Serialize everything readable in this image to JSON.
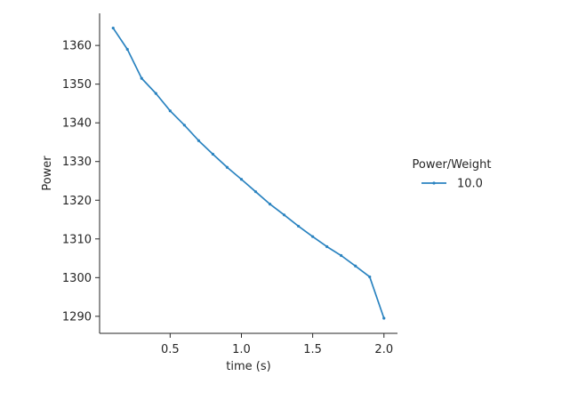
{
  "chart_data": {
    "type": "line",
    "xlabel": "time (s)",
    "ylabel": "Power",
    "xlim": [
      0.005,
      2.095
    ],
    "ylim": [
      1285.6,
      1368.3
    ],
    "xticks": [
      0.5,
      1.0,
      1.5,
      2.0
    ],
    "xtick_labels": [
      "0.5",
      "1.0",
      "1.5",
      "2.0"
    ],
    "yticks": [
      1290,
      1300,
      1310,
      1320,
      1330,
      1340,
      1350,
      1360
    ],
    "ytick_labels": [
      "1290",
      "1300",
      "1310",
      "1320",
      "1330",
      "1340",
      "1350",
      "1360"
    ],
    "grid": false,
    "legend": {
      "title": "Power/Weight",
      "placement": "right"
    },
    "series": [
      {
        "name": "10.0",
        "color": "#2a83c0",
        "x": [
          0.1,
          0.2,
          0.3,
          0.4,
          0.5,
          0.6,
          0.7,
          0.8,
          0.9,
          1.0,
          1.1,
          1.2,
          1.3,
          1.4,
          1.5,
          1.6,
          1.7,
          1.8,
          1.9,
          2.0
        ],
        "values": [
          1364.5,
          1359.0,
          1351.5,
          1347.6,
          1343.1,
          1339.4,
          1335.4,
          1331.9,
          1328.5,
          1325.4,
          1322.2,
          1319.0,
          1316.2,
          1313.3,
          1310.6,
          1308.0,
          1305.7,
          1303.0,
          1300.2,
          1289.5
        ]
      }
    ]
  }
}
